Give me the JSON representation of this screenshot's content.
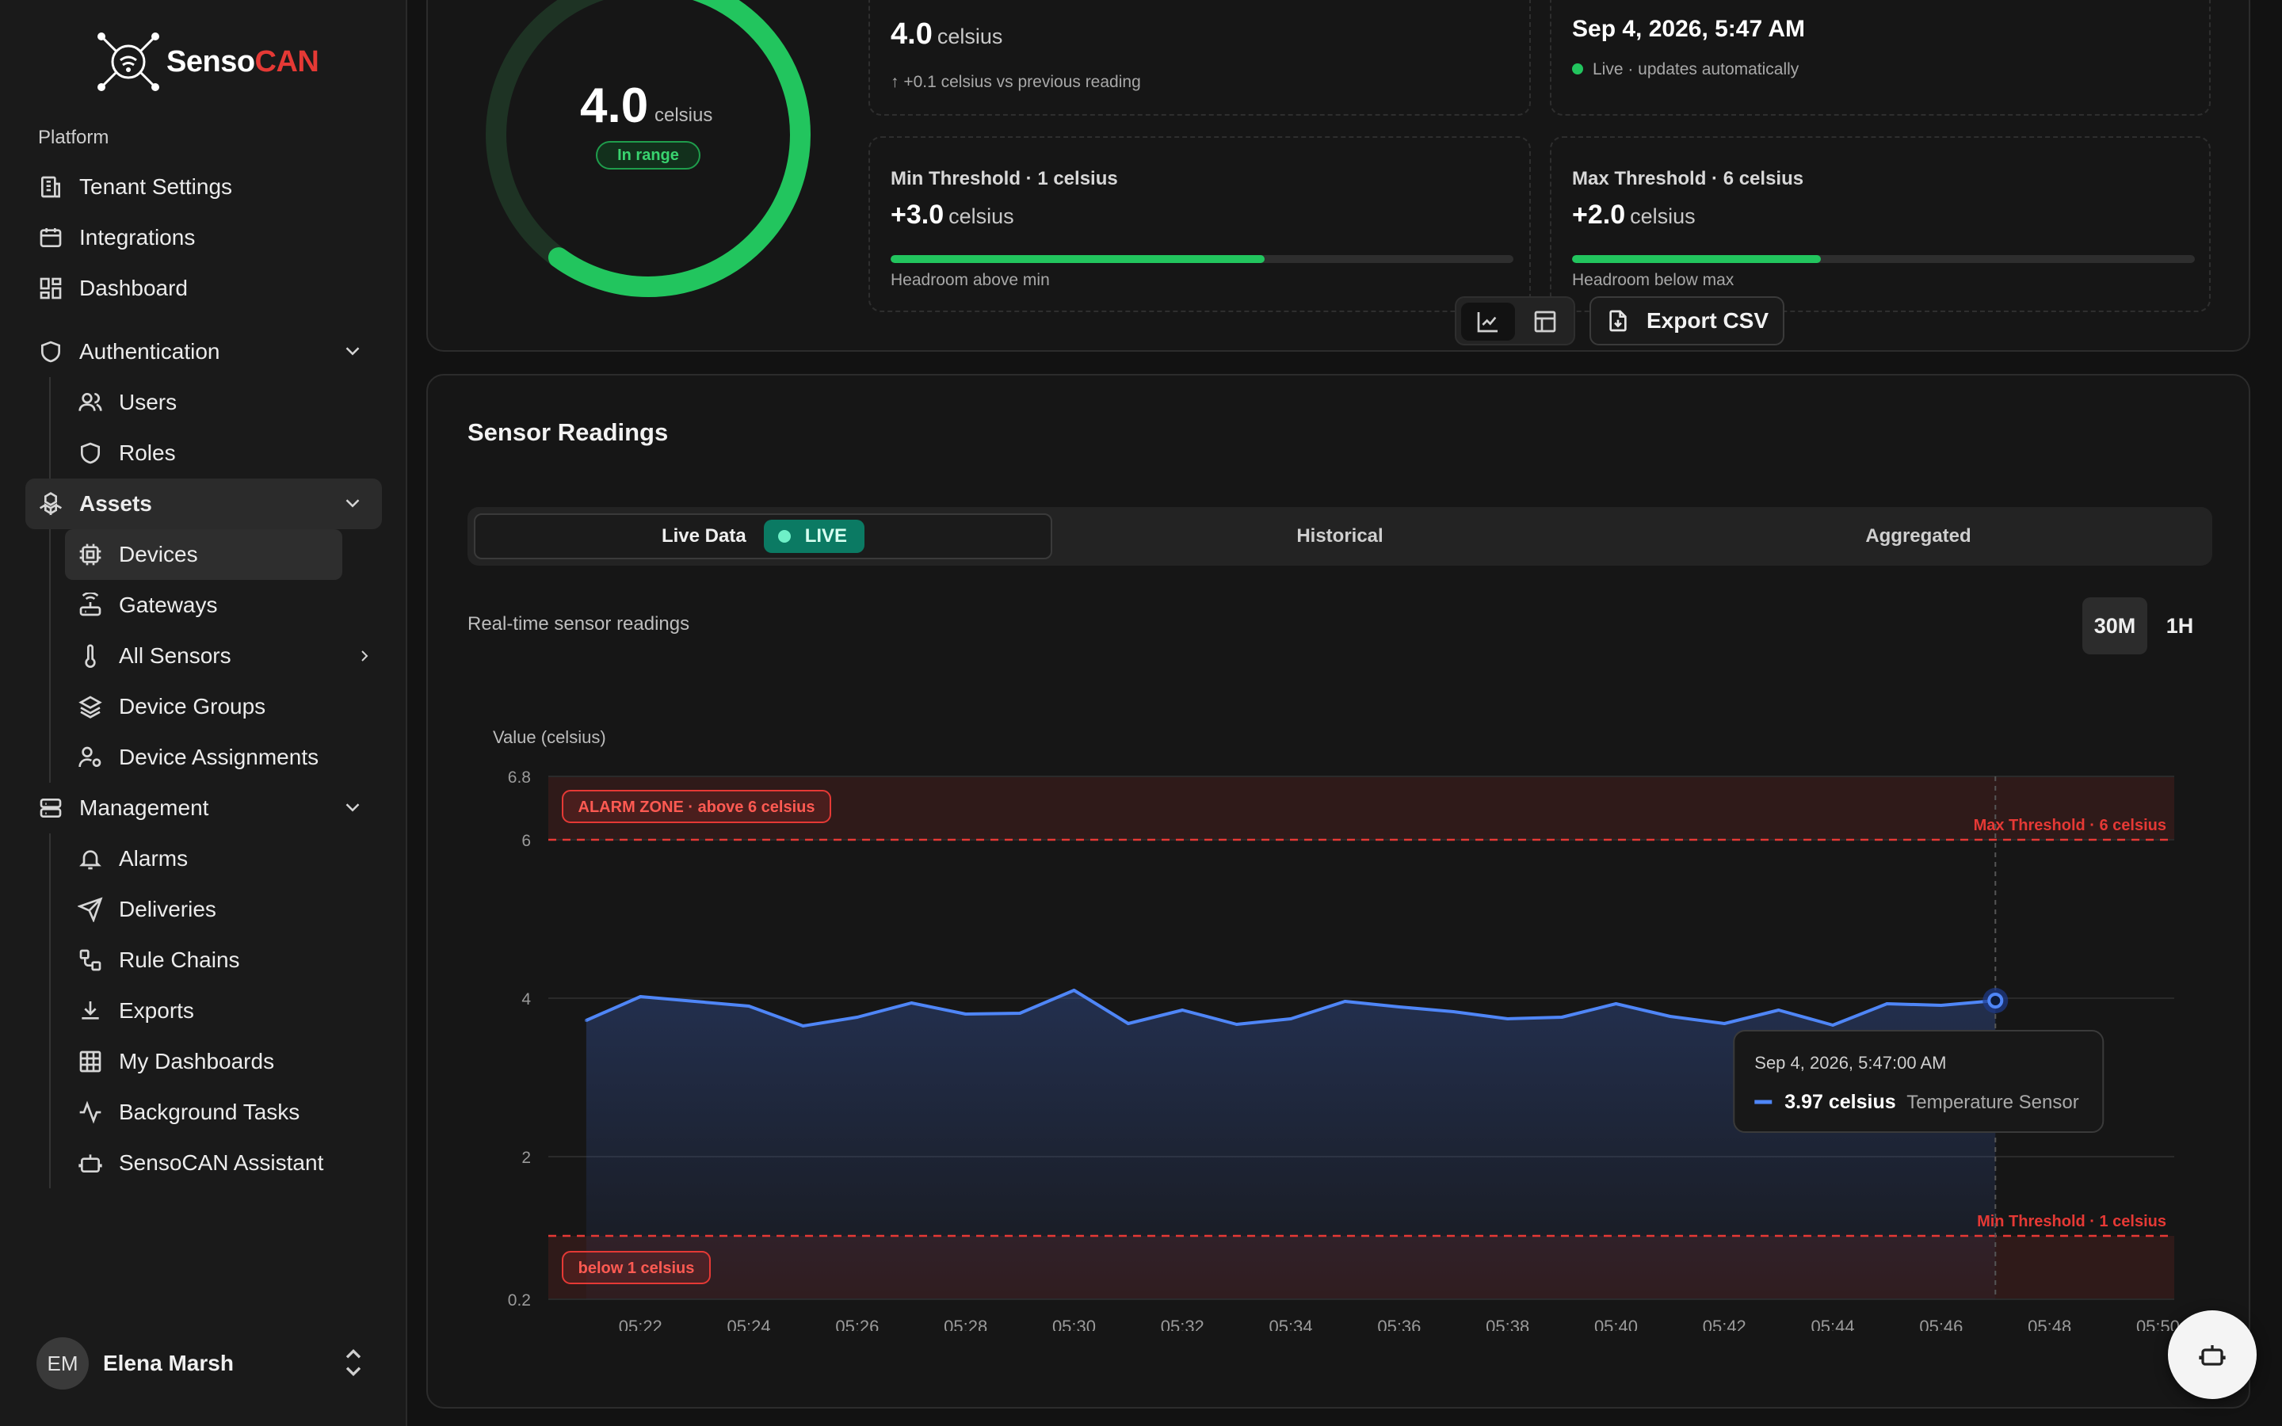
{
  "brand": {
    "name_main": "Senso",
    "name_accent": "CAN",
    "accent_color": "#e53935"
  },
  "sidebar": {
    "section_label": "Platform",
    "top_items": [
      {
        "label": "Tenant Settings",
        "icon": "building-icon"
      },
      {
        "label": "Integrations",
        "icon": "calendar-icon"
      },
      {
        "label": "Dashboard",
        "icon": "grid-icon"
      }
    ],
    "auth": {
      "label": "Authentication",
      "items": [
        "Users",
        "Roles"
      ]
    },
    "assets": {
      "label": "Assets",
      "items": [
        "Devices",
        "Gateways",
        "All Sensors",
        "Device Groups",
        "Device Assignments"
      ],
      "selected": "Devices"
    },
    "management": {
      "label": "Management",
      "items": [
        "Alarms",
        "Deliveries",
        "Rule Chains",
        "Exports",
        "My Dashboards",
        "Background Tasks",
        "SensoCAN Assistant"
      ]
    },
    "user": {
      "initials": "EM",
      "name": "Elena Marsh"
    }
  },
  "summary": {
    "gauge": {
      "value": "4.0",
      "unit": "celsius",
      "badge": "In range",
      "fill_fraction": 0.6
    },
    "current": {
      "value": "4.0",
      "unit": "celsius",
      "delta": "↑ +0.1 celsius vs previous reading"
    },
    "timestamp": {
      "value": "Sep 4, 2026, 5:47 AM",
      "status": "Live · updates automatically"
    },
    "min_threshold": {
      "title": "Min Threshold · 1 celsius",
      "value": "+3.0",
      "unit": "celsius",
      "foot": "Headroom above min",
      "fill_fraction": 0.6
    },
    "max_threshold": {
      "title": "Max Threshold · 6 celsius",
      "value": "+2.0",
      "unit": "celsius",
      "foot": "Headroom below max",
      "fill_fraction": 0.4
    }
  },
  "readings": {
    "title": "Sensor Readings",
    "tabs": {
      "live": "Live Data",
      "live_badge": "LIVE",
      "historical": "Historical",
      "aggregated": "Aggregated"
    },
    "subtitle": "Real-time sensor readings",
    "ranges": [
      "30M",
      "1H"
    ],
    "selected_range": "30M",
    "export_label": "Export CSV"
  },
  "chart_data": {
    "type": "line",
    "ylabel": "Value (celsius)",
    "ylim": [
      0.2,
      6.8
    ],
    "yticks": [
      "6.8",
      "6",
      "4",
      "2",
      "0.2"
    ],
    "xticks": [
      "05:22",
      "05:24",
      "05:26",
      "05:28",
      "05:30",
      "05:32",
      "05:34",
      "05:36",
      "05:38",
      "05:40",
      "05:42",
      "05:44",
      "05:46",
      "05:48",
      "05:50"
    ],
    "x_minutes": [
      21,
      22,
      23,
      24,
      25,
      26,
      27,
      28,
      29,
      30,
      31,
      32,
      33,
      34,
      35,
      36,
      37,
      38,
      39,
      40,
      41,
      42,
      43,
      44,
      45,
      46,
      47
    ],
    "series": [
      {
        "name": "Temperature Sensor",
        "color": "#4f86f7",
        "values": [
          3.72,
          4.02,
          3.96,
          3.9,
          3.65,
          3.76,
          3.94,
          3.8,
          3.81,
          4.1,
          3.68,
          3.85,
          3.67,
          3.74,
          3.96,
          3.89,
          3.83,
          3.74,
          3.76,
          3.93,
          3.77,
          3.68,
          3.85,
          3.66,
          3.93,
          3.91,
          3.97
        ]
      }
    ],
    "max_threshold": {
      "value": 6,
      "label": "Max Threshold · 6 celsius",
      "zone_label": "ALARM ZONE · above 6 celsius"
    },
    "min_threshold": {
      "value": 1,
      "label": "Min Threshold · 1 celsius",
      "zone_label": "below 1 celsius"
    },
    "tooltip": {
      "time": "Sep 4, 2026, 5:47:00 AM",
      "value": "3.97 celsius",
      "series": "Temperature Sensor"
    },
    "threshold_color": "#e53935"
  }
}
